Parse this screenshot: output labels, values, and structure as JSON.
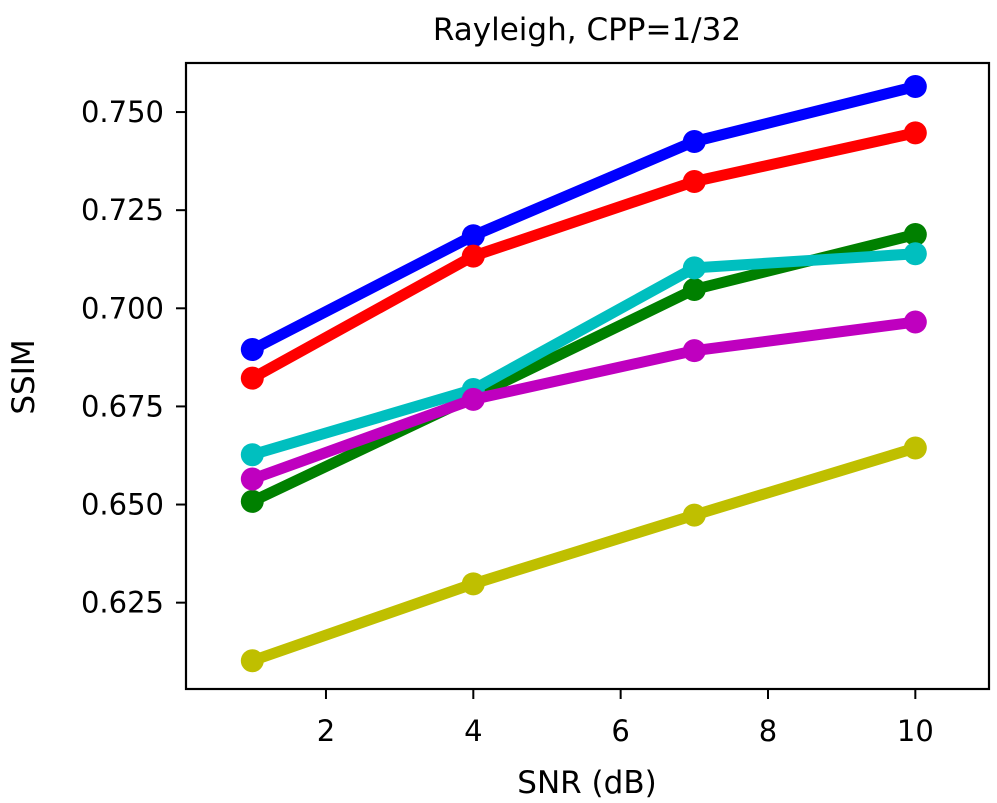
{
  "chart_data": {
    "type": "line",
    "title": "Rayleigh, CPP=1/32",
    "xlabel": "SNR (dB)",
    "ylabel": "SSIM",
    "x": [
      1,
      4,
      7,
      10
    ],
    "xlim": [
      0.1,
      11.0
    ],
    "ylim": [
      0.603,
      0.7625
    ],
    "xticks": [
      2,
      4,
      6,
      8,
      10
    ],
    "xtick_labels": [
      "2",
      "4",
      "6",
      "8",
      "10"
    ],
    "yticks": [
      0.625,
      0.65,
      0.675,
      0.7,
      0.725,
      0.75
    ],
    "ytick_labels": [
      "0.625",
      "0.650",
      "0.675",
      "0.700",
      "0.725",
      "0.750"
    ],
    "grid": false,
    "legend": "none",
    "series": [
      {
        "name": "blue",
        "color": "#0000ff",
        "values": [
          0.6895,
          0.7185,
          0.7425,
          0.7565
        ]
      },
      {
        "name": "red",
        "color": "#ff0000",
        "values": [
          0.6822,
          0.7133,
          0.7323,
          0.7447
        ]
      },
      {
        "name": "green",
        "color": "#008000",
        "values": [
          0.6508,
          0.6775,
          0.7048,
          0.7188
        ]
      },
      {
        "name": "cyan",
        "color": "#00bfbf",
        "values": [
          0.6627,
          0.6793,
          0.7103,
          0.7139
        ]
      },
      {
        "name": "magenta",
        "color": "#bf00bf",
        "values": [
          0.6565,
          0.6768,
          0.6892,
          0.6965
        ]
      },
      {
        "name": "olive",
        "color": "#bfbf00",
        "values": [
          0.6102,
          0.6298,
          0.6473,
          0.6644
        ]
      }
    ]
  }
}
